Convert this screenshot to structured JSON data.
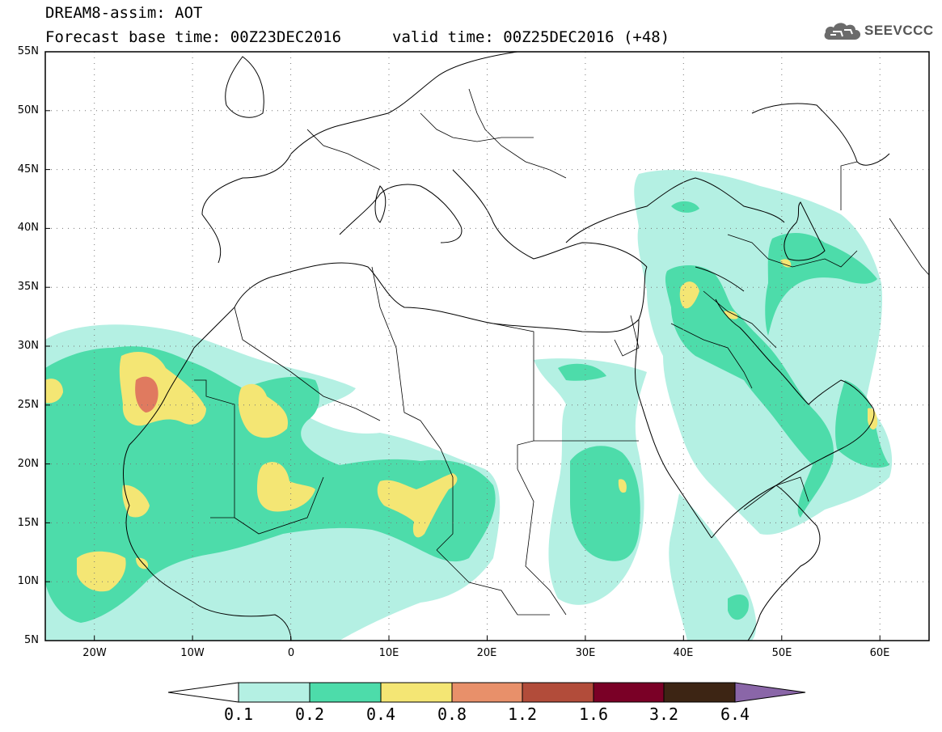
{
  "header": {
    "title_line1": "DREAM8-assim: AOT",
    "base_time": "Forecast base time: 00Z23DEC2016",
    "valid_time": "valid time: 00Z25DEC2016 (+48)",
    "logo_text": "SEEVCCC",
    "logo_icon": "cloud-icon"
  },
  "map": {
    "lon_range": [
      -25,
      65
    ],
    "lat_range": [
      5,
      55
    ],
    "lat_labels": [
      "55N",
      "50N",
      "45N",
      "40N",
      "35N",
      "30N",
      "25N",
      "20N",
      "15N",
      "10N",
      "5N"
    ],
    "lon_labels": [
      "20W",
      "10W",
      "0",
      "10E",
      "20E",
      "30E",
      "40E",
      "50E",
      "60E"
    ],
    "grid": "dotted"
  },
  "colorbar": {
    "levels": [
      "0.1",
      "0.2",
      "0.4",
      "0.8",
      "1.2",
      "1.6",
      "3.2",
      "6.4"
    ],
    "colors": [
      "#ffffff",
      "#b4f0e3",
      "#4ddcaa",
      "#f4e674",
      "#e8906a",
      "#b24c3a",
      "#7a0026",
      "#3d2514",
      "#8a66a8"
    ],
    "extend": "both"
  }
}
